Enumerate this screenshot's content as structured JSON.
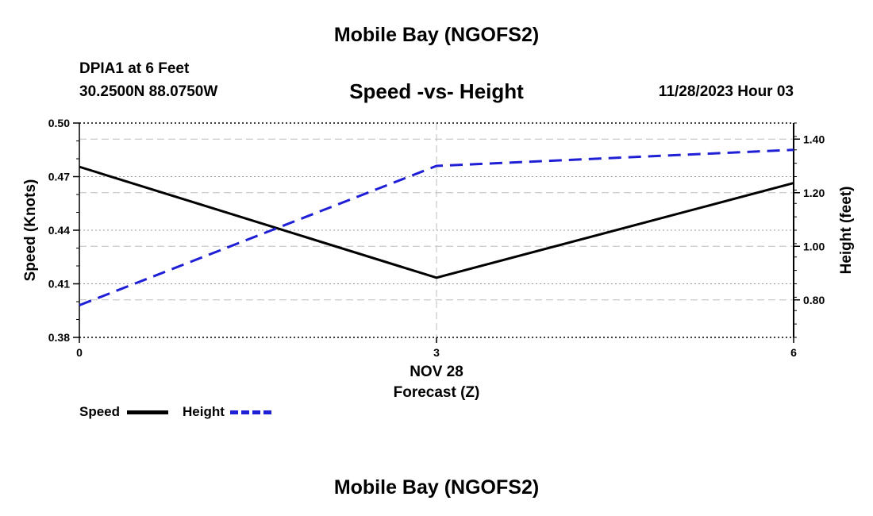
{
  "page": {
    "title": "Mobile Bay (NGOFS2)",
    "footer_title": "Mobile Bay (NGOFS2)"
  },
  "station": {
    "name": "DPIA1 at 6 Feet",
    "coords": "30.2500N  88.0750W",
    "datetime": "11/28/2023 Hour 03"
  },
  "chart_data": {
    "type": "line",
    "title": "Speed -vs- Height",
    "xlabel": "Forecast (Z)",
    "date_label": "NOV 28",
    "x": [
      0,
      3,
      6
    ],
    "x_tick_labels": [
      "0",
      "3",
      "6"
    ],
    "xlim": [
      0,
      6
    ],
    "ylabel": "Speed (Knots)",
    "ylim": [
      0.38,
      0.5
    ],
    "y_ticks": [
      0.38,
      0.41,
      0.44,
      0.47,
      0.5
    ],
    "y_tick_labels": [
      "0.38",
      "0.41",
      "0.44",
      "0.47",
      "0.50"
    ],
    "y2label": "Height (feet)",
    "y2lim": [
      0.66,
      1.46
    ],
    "y2_ticks": [
      0.8,
      1.0,
      1.2,
      1.4
    ],
    "y2_tick_labels": [
      "0.80",
      "1.00",
      "1.20",
      "1.40"
    ],
    "grid": true,
    "legend_position": "bottom-left",
    "series": [
      {
        "name": "Speed",
        "axis": "left",
        "color": "#000000",
        "style": "solid",
        "values": [
          0.4755,
          0.4134,
          0.4664
        ]
      },
      {
        "name": "Height",
        "axis": "right",
        "color": "#1f1fd6",
        "style": "dashed",
        "values": [
          0.78,
          1.3,
          1.36
        ]
      }
    ]
  }
}
